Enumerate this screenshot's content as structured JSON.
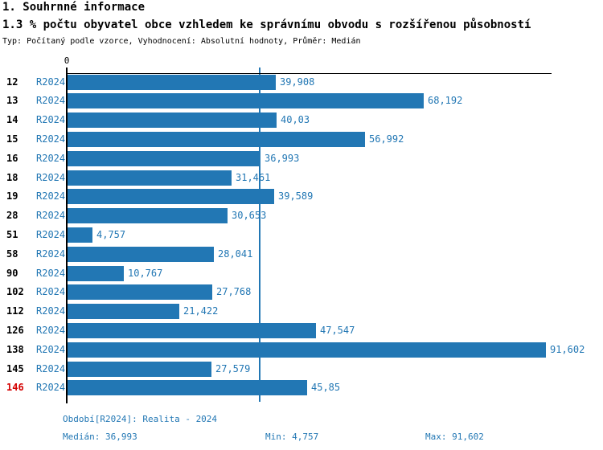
{
  "title": "1. Souhrnné informace",
  "subtitle": "1.3 % počtu obyvatel obce vzhledem ke správnímu obvodu s rozšířenou působností",
  "meta": "Typ: Počítaný podle vzorce, Vyhodnocení: Absolutní hodnoty, Průměr: Medián",
  "colors": {
    "bar": "#2277b4",
    "blue_text": "#2277b4",
    "median_line": "#2277b4",
    "highlight_red": "#d40000",
    "axis": "#000000",
    "background": "#ffffff"
  },
  "chart_data": {
    "type": "bar",
    "orientation": "horizontal",
    "title": "1.3 % počtu obyvatel obce vzhledem ke správnímu obvodu s rozšířenou působností",
    "series_name": "R2024",
    "axis_zero_label": "0",
    "xlim": [
      0,
      92.8
    ],
    "grid": false,
    "median_reference_line": 36.993,
    "categories": [
      "12",
      "13",
      "14",
      "15",
      "16",
      "18",
      "19",
      "28",
      "51",
      "58",
      "90",
      "102",
      "112",
      "126",
      "138",
      "145",
      "146"
    ],
    "rows": [
      {
        "id": "12",
        "period": "R2024",
        "value": 39.908,
        "label": "39,908",
        "highlight": false
      },
      {
        "id": "13",
        "period": "R2024",
        "value": 68.192,
        "label": "68,192",
        "highlight": false
      },
      {
        "id": "14",
        "period": "R2024",
        "value": 40.03,
        "label": "40,03",
        "highlight": false
      },
      {
        "id": "15",
        "period": "R2024",
        "value": 56.992,
        "label": "56,992",
        "highlight": false
      },
      {
        "id": "16",
        "period": "R2024",
        "value": 36.993,
        "label": "36,993",
        "highlight": false
      },
      {
        "id": "18",
        "period": "R2024",
        "value": 31.461,
        "label": "31,461",
        "highlight": false
      },
      {
        "id": "19",
        "period": "R2024",
        "value": 39.589,
        "label": "39,589",
        "highlight": false
      },
      {
        "id": "28",
        "period": "R2024",
        "value": 30.653,
        "label": "30,653",
        "highlight": false
      },
      {
        "id": "51",
        "period": "R2024",
        "value": 4.757,
        "label": "4,757",
        "highlight": false
      },
      {
        "id": "58",
        "period": "R2024",
        "value": 28.041,
        "label": "28,041",
        "highlight": false
      },
      {
        "id": "90",
        "period": "R2024",
        "value": 10.767,
        "label": "10,767",
        "highlight": false
      },
      {
        "id": "102",
        "period": "R2024",
        "value": 27.768,
        "label": "27,768",
        "highlight": false
      },
      {
        "id": "112",
        "period": "R2024",
        "value": 21.422,
        "label": "21,422",
        "highlight": false
      },
      {
        "id": "126",
        "period": "R2024",
        "value": 47.547,
        "label": "47,547",
        "highlight": false
      },
      {
        "id": "138",
        "period": "R2024",
        "value": 91.602,
        "label": "91,602",
        "highlight": false
      },
      {
        "id": "145",
        "period": "R2024",
        "value": 27.579,
        "label": "27,579",
        "highlight": false
      },
      {
        "id": "146",
        "period": "R2024",
        "value": 45.85,
        "label": "45,85",
        "highlight": true
      }
    ]
  },
  "footer": {
    "period": "Období[R2024]: Realita - 2024",
    "median": "Medián: 36,993",
    "min": "Min: 4,757",
    "max": "Max: 91,602"
  }
}
